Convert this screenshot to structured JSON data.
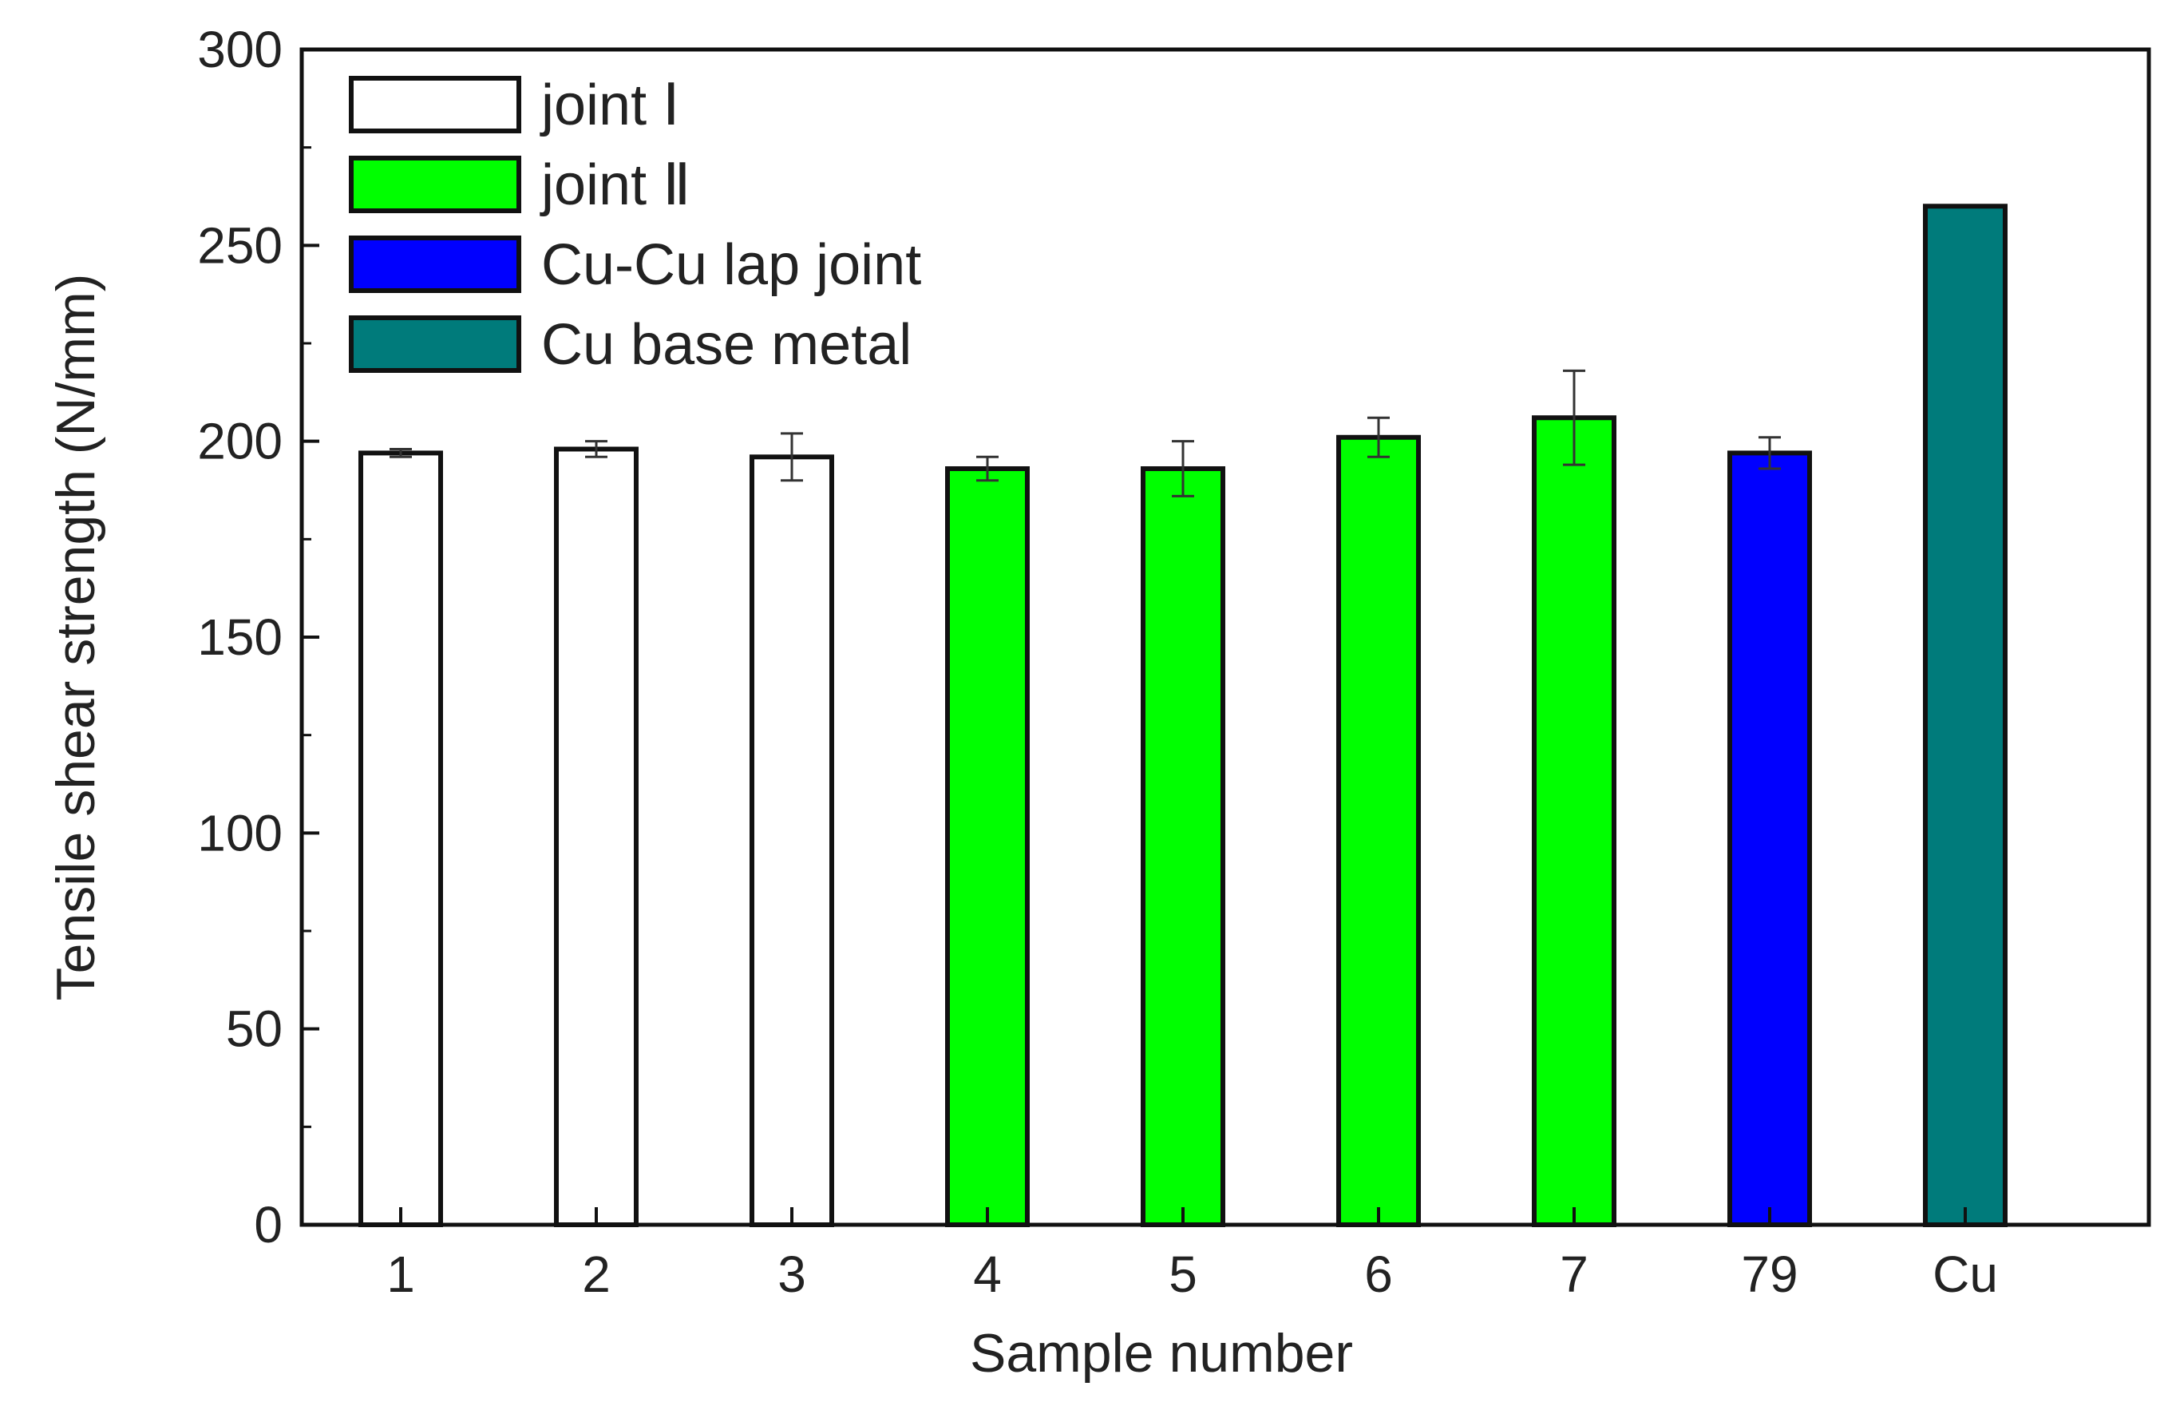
{
  "chart_data": {
    "type": "bar",
    "categories": [
      "1",
      "2",
      "3",
      "4",
      "5",
      "6",
      "7",
      "79",
      "Cu"
    ],
    "values": [
      197,
      198,
      196,
      193,
      193,
      201,
      206,
      197,
      260
    ],
    "errors": [
      1,
      2,
      6,
      3,
      7,
      5,
      12,
      4,
      0
    ],
    "groups": [
      "joint Ⅰ",
      "joint Ⅰ",
      "joint Ⅰ",
      "joint Ⅱ",
      "joint Ⅱ",
      "joint Ⅱ",
      "joint Ⅱ",
      "Cu-Cu lap joint",
      "Cu base metal"
    ],
    "legend": [
      {
        "name": "joint Ⅰ",
        "color": "#ffffff"
      },
      {
        "name": "joint Ⅱ",
        "color": "#00ff00"
      },
      {
        "name": "Cu-Cu lap joint",
        "color": "#0000ff"
      },
      {
        "name": "Cu base metal",
        "color": "#007b7b"
      }
    ],
    "legend_position": "top-left",
    "xlabel": "Sample number",
    "ylabel": "Tensile shear strength (N/mm)",
    "ylim": [
      0,
      300
    ],
    "yticks": [
      0,
      50,
      100,
      150,
      200,
      250,
      300
    ],
    "grid": false
  }
}
